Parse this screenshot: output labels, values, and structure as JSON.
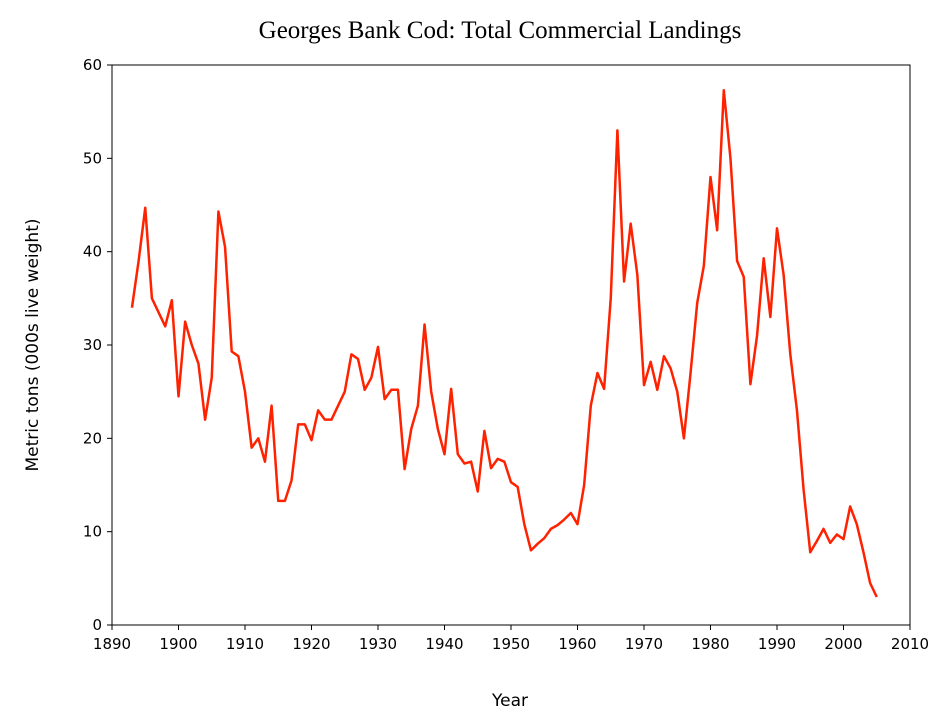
{
  "chart_data": {
    "type": "line",
    "title": "Georges Bank Cod: Total Commercial Landings",
    "x_label": "Year",
    "y_label": "Metric tons (000s live weight)",
    "x": [
      1893,
      1894,
      1895,
      1896,
      1897,
      1898,
      1899,
      1900,
      1901,
      1902,
      1903,
      1904,
      1905,
      1906,
      1907,
      1908,
      1909,
      1910,
      1911,
      1912,
      1913,
      1914,
      1915,
      1916,
      1917,
      1918,
      1919,
      1920,
      1921,
      1922,
      1923,
      1924,
      1925,
      1926,
      1927,
      1928,
      1929,
      1930,
      1931,
      1932,
      1933,
      1934,
      1935,
      1936,
      1937,
      1938,
      1939,
      1940,
      1941,
      1942,
      1943,
      1944,
      1945,
      1946,
      1947,
      1948,
      1949,
      1950,
      1951,
      1952,
      1953,
      1954,
      1955,
      1956,
      1957,
      1958,
      1959,
      1960,
      1961,
      1962,
      1963,
      1964,
      1965,
      1966,
      1967,
      1968,
      1969,
      1970,
      1971,
      1972,
      1973,
      1974,
      1975,
      1976,
      1977,
      1978,
      1979,
      1980,
      1981,
      1982,
      1983,
      1984,
      1985,
      1986,
      1987,
      1988,
      1989,
      1990,
      1991,
      1992,
      1993,
      1994,
      1995,
      1996,
      1997,
      1998,
      1999,
      2000,
      2001,
      2002,
      2003,
      2004,
      2005
    ],
    "series": [
      {
        "name": "Total Commercial Landings",
        "color": "#ff2200",
        "values": [
          34,
          39,
          44.7,
          35,
          33.5,
          32,
          34.8,
          24.5,
          32.5,
          30,
          28,
          22,
          26.5,
          44.3,
          40.5,
          29.3,
          28.8,
          25,
          19,
          20,
          17.5,
          23.5,
          13.3,
          13.3,
          15.5,
          21.5,
          21.5,
          19.8,
          23,
          22,
          22,
          23.5,
          25,
          29,
          28.5,
          25.2,
          26.5,
          29.8,
          24.2,
          25.2,
          25.2,
          16.7,
          21,
          23.5,
          32.2,
          25,
          21,
          18.3,
          25.3,
          18.3,
          17.3,
          17.5,
          14.3,
          20.8,
          16.8,
          17.8,
          17.5,
          15.3,
          14.8,
          10.8,
          8,
          8.7,
          9.3,
          10.3,
          10.7,
          11.3,
          12,
          10.8,
          15,
          23.5,
          27,
          25.3,
          35,
          53,
          36.8,
          43,
          37.5,
          25.7,
          28.2,
          25.2,
          28.8,
          27.5,
          25,
          20,
          27,
          34.5,
          38.5,
          48,
          42.3,
          57.3,
          50,
          39,
          37.3,
          25.8,
          31,
          39.3,
          33,
          42.5,
          37.5,
          29,
          23,
          14.5,
          7.8,
          9,
          10.3,
          8.8,
          9.7,
          9.2,
          12.7,
          10.8,
          7.8,
          4.5,
          3
        ]
      }
    ],
    "xlim": [
      1890,
      2010
    ],
    "xticks": [
      1890,
      1900,
      1910,
      1920,
      1930,
      1940,
      1950,
      1960,
      1970,
      1980,
      1990,
      2000,
      2010
    ],
    "ylim": [
      0,
      60
    ],
    "yticks": [
      0,
      10,
      20,
      30,
      40,
      50,
      60
    ],
    "grid": false
  }
}
